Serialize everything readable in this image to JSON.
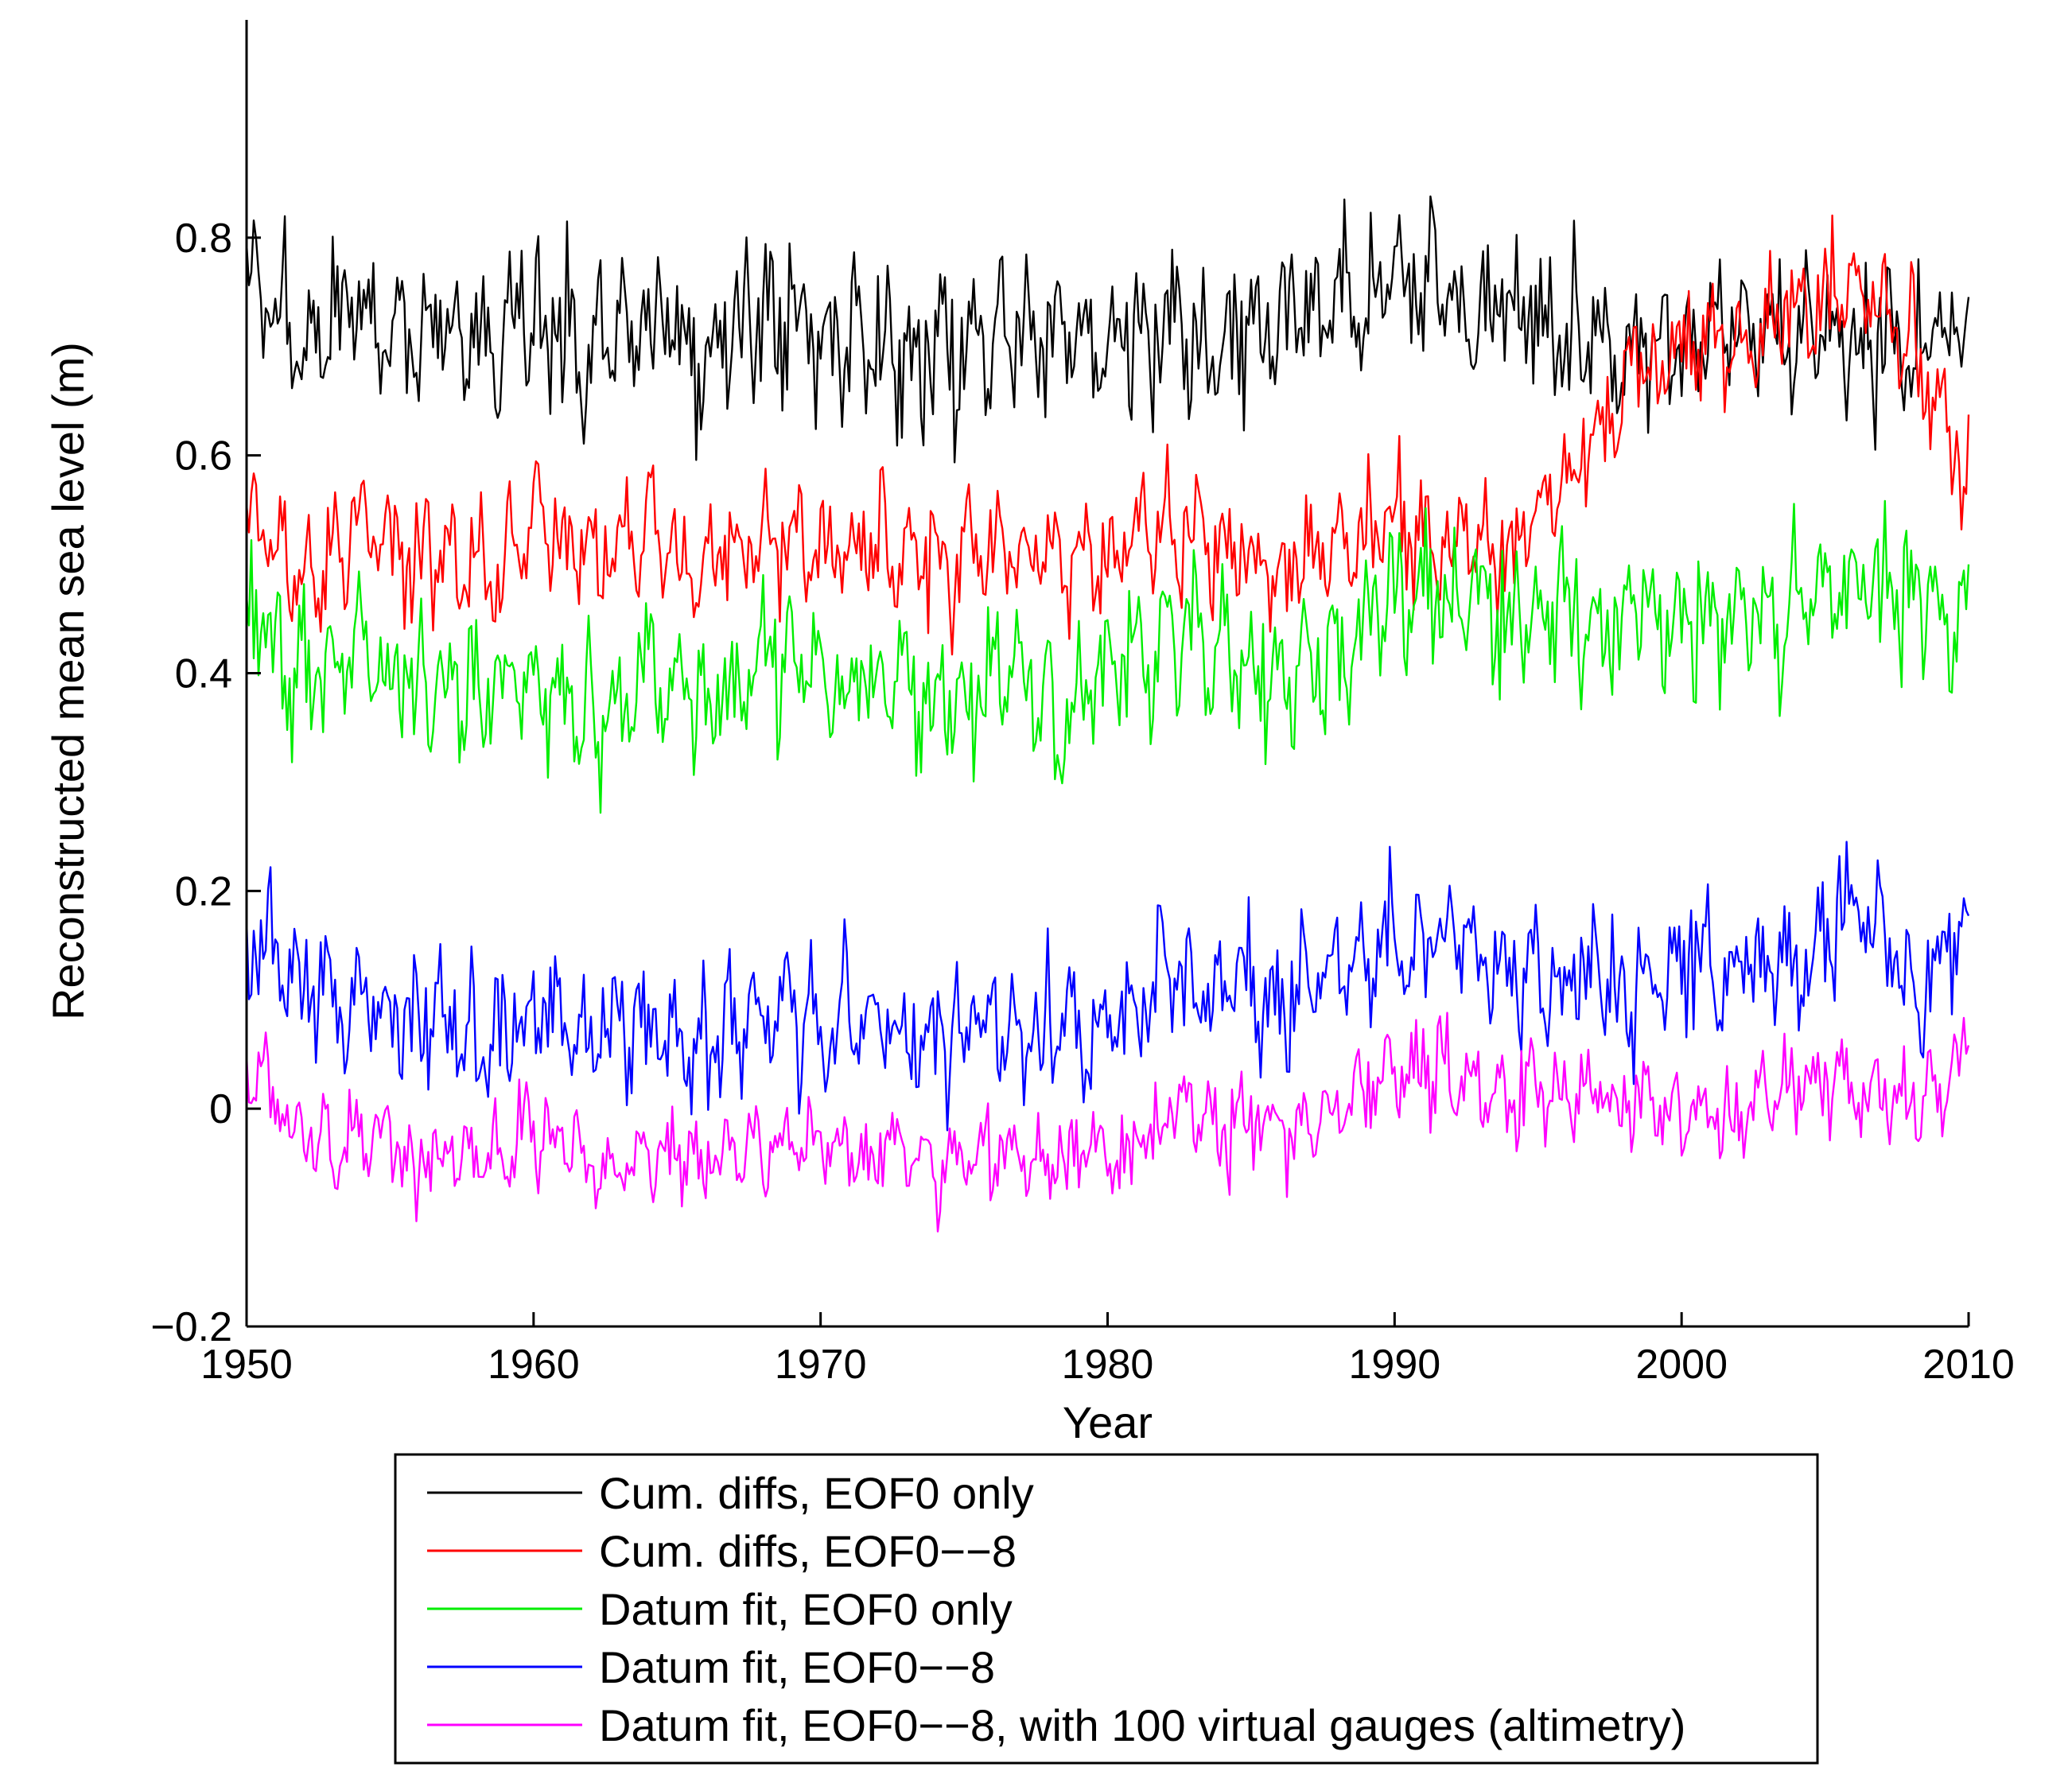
{
  "chart_data": {
    "type": "line",
    "xlabel": "Year",
    "ylabel": "Reconstructed mean sea level (m)",
    "xlim": [
      1950,
      2010
    ],
    "ylim": [
      -0.2,
      1.0
    ],
    "x_ticks": [
      1950,
      1960,
      1970,
      1980,
      1990,
      2000,
      2010
    ],
    "y_ticks": [
      -0.2,
      0,
      0.2,
      0.4,
      0.6,
      0.8
    ],
    "x_tick_labels": [
      "1950",
      "1960",
      "1970",
      "1980",
      "1990",
      "2000",
      "2010"
    ],
    "y_tick_labels": [
      "−0.2",
      "0",
      "0.2",
      "0.4",
      "0.6",
      "0.8"
    ],
    "grid": false,
    "legend_position": "bottom, below axes",
    "x": [
      1950,
      1952,
      1954,
      1956,
      1958,
      1960,
      1962,
      1964,
      1966,
      1968,
      1970,
      1972,
      1974,
      1976,
      1978,
      1980,
      1982,
      1984,
      1986,
      1988,
      1990,
      1992,
      1994,
      1996,
      1998,
      2000,
      2002,
      2004,
      2006,
      2008,
      2010
    ],
    "series": [
      {
        "name": "Cum. diffs, EOF0 only",
        "color": "#000000",
        "amplitude": 0.07,
        "values": [
          0.76,
          0.71,
          0.73,
          0.71,
          0.7,
          0.73,
          0.7,
          0.72,
          0.7,
          0.73,
          0.72,
          0.71,
          0.69,
          0.71,
          0.7,
          0.7,
          0.73,
          0.71,
          0.72,
          0.74,
          0.77,
          0.74,
          0.75,
          0.72,
          0.69,
          0.71,
          0.71,
          0.72,
          0.72,
          0.71,
          0.72
        ]
      },
      {
        "name": "Cum. diffs, EOF0−−8",
        "color": "#ff0000",
        "amplitude": 0.055,
        "values": [
          0.55,
          0.48,
          0.53,
          0.5,
          0.48,
          0.53,
          0.5,
          0.53,
          0.5,
          0.53,
          0.52,
          0.51,
          0.5,
          0.52,
          0.5,
          0.51,
          0.53,
          0.51,
          0.5,
          0.51,
          0.54,
          0.52,
          0.51,
          0.58,
          0.66,
          0.71,
          0.69,
          0.74,
          0.76,
          0.7,
          0.57
        ]
      },
      {
        "name": "Datum fit, EOF0 only",
        "color": "#00ee00",
        "amplitude": 0.065,
        "values": [
          0.45,
          0.4,
          0.42,
          0.4,
          0.38,
          0.4,
          0.36,
          0.4,
          0.37,
          0.41,
          0.4,
          0.4,
          0.38,
          0.39,
          0.37,
          0.4,
          0.43,
          0.42,
          0.4,
          0.43,
          0.47,
          0.46,
          0.44,
          0.46,
          0.44,
          0.45,
          0.45,
          0.46,
          0.48,
          0.47,
          0.44
        ]
      },
      {
        "name": "Datum fit, EOF0−−8",
        "color": "#0000ff",
        "amplitude": 0.06,
        "values": [
          0.16,
          0.1,
          0.1,
          0.08,
          0.06,
          0.09,
          0.06,
          0.08,
          0.06,
          0.09,
          0.08,
          0.08,
          0.06,
          0.08,
          0.07,
          0.08,
          0.12,
          0.11,
          0.1,
          0.12,
          0.16,
          0.15,
          0.12,
          0.13,
          0.11,
          0.14,
          0.13,
          0.14,
          0.18,
          0.1,
          0.16
        ]
      },
      {
        "name": "Datum fit, EOF0−−8, with 100 virtual gauges (altimetry)",
        "color": "#ff00ff",
        "amplitude": 0.045,
        "values": [
          0.05,
          -0.03,
          -0.02,
          -0.05,
          -0.05,
          -0.02,
          -0.05,
          -0.04,
          -0.05,
          -0.04,
          -0.03,
          -0.04,
          -0.05,
          -0.05,
          -0.05,
          -0.04,
          -0.01,
          -0.01,
          -0.02,
          0.0,
          0.04,
          0.03,
          0.01,
          0.02,
          0.0,
          0.0,
          0.0,
          0.02,
          0.02,
          0.0,
          0.04
        ]
      }
    ]
  }
}
